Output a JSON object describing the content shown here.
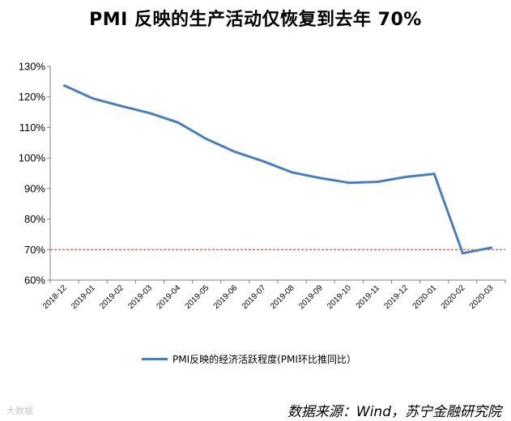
{
  "chart_data": {
    "type": "line",
    "title": "PMI 反映的生产活动仅恢复到去年 70%",
    "xlabel": "",
    "ylabel": "",
    "categories": [
      "2018-12",
      "2019-01",
      "2019-02",
      "2019-03",
      "2019-04",
      "2019-05",
      "2019-06",
      "2019-07",
      "2019-08",
      "2019-09",
      "2019-10",
      "2019-11",
      "2019-12",
      "2020-01",
      "2020-02",
      "2020-03"
    ],
    "series": [
      {
        "name": "PMI反映的经济活跃程度(PMI环比推同比）",
        "color": "#4a7ebb",
        "values": [
          123.7,
          119.5,
          117.0,
          114.7,
          111.6,
          106.2,
          102.0,
          98.9,
          95.3,
          93.4,
          91.9,
          92.2,
          93.8,
          94.8,
          68.8,
          70.6
        ]
      }
    ],
    "reference_line": {
      "value": 70,
      "color": "#c0392b",
      "style": "dashed"
    },
    "ylim": [
      60,
      130
    ],
    "yticks": [
      "60%",
      "70%",
      "80%",
      "90%",
      "100%",
      "110%",
      "120%",
      "130%"
    ],
    "grid": false,
    "legend_position": "bottom"
  },
  "source_note": "数据来源：Wind，苏宁金融研究院",
  "watermark": "大数据"
}
